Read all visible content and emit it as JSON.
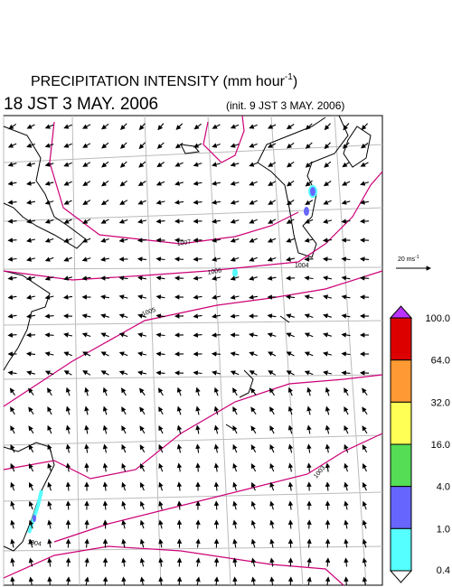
{
  "header": {
    "title": "PRECIPITATION INTENSITY (mm hour",
    "title_exponent": "-1",
    "title_close": ")",
    "valid_time": "18 JST 3 MAY. 2006",
    "init_time": "(init. 9 JST 3 MAY. 2006)"
  },
  "map": {
    "contour_labels": [
      "1007",
      "1006",
      "1005",
      "1004",
      "1003",
      "1004"
    ]
  },
  "vector_scale": {
    "label": "20 ms",
    "exponent": "-1"
  },
  "colorbar": {
    "labels": [
      "100.0",
      "64.0",
      "32.0",
      "16.0",
      "4.0",
      "1.0",
      "0.4"
    ],
    "colors": [
      "#dd0000",
      "#ff9933",
      "#ffff55",
      "#55dd55",
      "#6666ff",
      "#55ffff"
    ],
    "over_color": "#bb33ff",
    "under_color": "#ffffff"
  }
}
